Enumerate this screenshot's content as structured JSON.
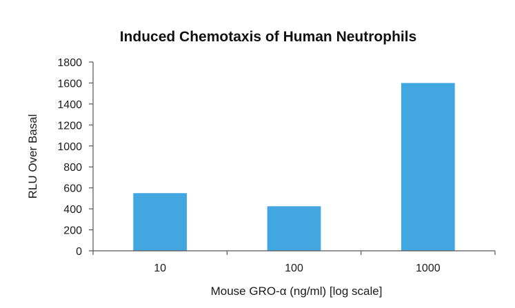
{
  "chart_data": {
    "type": "bar",
    "title": "Induced Chemotaxis of Human Neutrophils",
    "xlabel": "Mouse GRO-α (ng/ml) [log scale]",
    "ylabel": "RLU Over Basal",
    "categories": [
      "10",
      "100",
      "1000"
    ],
    "values": [
      550,
      425,
      1600
    ],
    "ylim": [
      0,
      1800
    ],
    "yticks": [
      0,
      200,
      400,
      600,
      800,
      1000,
      1200,
      1400,
      1600,
      1800
    ],
    "ytick_labels": [
      "0",
      "200",
      "400",
      "600",
      "800",
      "1000",
      "1200",
      "1400",
      "1600",
      "1800"
    ],
    "x_scale": "log",
    "grid": false,
    "legend": "none",
    "bar_color": "#42a7e0",
    "axis_color": "#555555"
  }
}
